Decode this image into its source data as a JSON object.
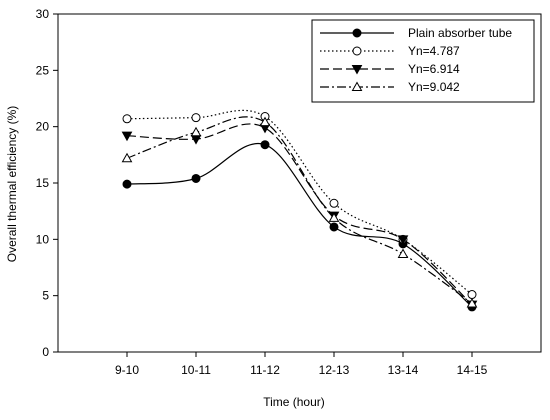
{
  "chart_data": {
    "type": "line",
    "categories": [
      "9-10",
      "10-11",
      "11-12",
      "12-13",
      "13-14",
      "14-15"
    ],
    "xlabel": "Time (hour)",
    "ylabel": "Overall thermal efficiency (%)",
    "ylim": [
      0,
      30
    ],
    "yticks": [
      0,
      5,
      10,
      15,
      20,
      25,
      30
    ],
    "grid": false,
    "legend_position": "top-right",
    "series": [
      {
        "name": "Plain absorber tube",
        "values": [
          14.9,
          15.4,
          18.4,
          11.1,
          9.6,
          4.0
        ],
        "marker": "filled-circle",
        "line_style": "solid",
        "color": "#000000"
      },
      {
        "name": "Yn=4.787",
        "values": [
          20.7,
          20.8,
          20.9,
          13.2,
          10.0,
          5.1
        ],
        "marker": "open-circle",
        "line_style": "dotted",
        "color": "#000000"
      },
      {
        "name": "Yn=6.914",
        "values": [
          19.2,
          18.9,
          19.9,
          12.1,
          10.0,
          4.2
        ],
        "marker": "filled-triangle-down",
        "line_style": "dashed",
        "color": "#000000"
      },
      {
        "name": "Yn=9.042",
        "values": [
          17.2,
          19.5,
          20.4,
          11.9,
          8.7,
          4.3
        ],
        "marker": "open-triangle-up",
        "line_style": "dash-dot",
        "color": "#000000"
      }
    ]
  }
}
